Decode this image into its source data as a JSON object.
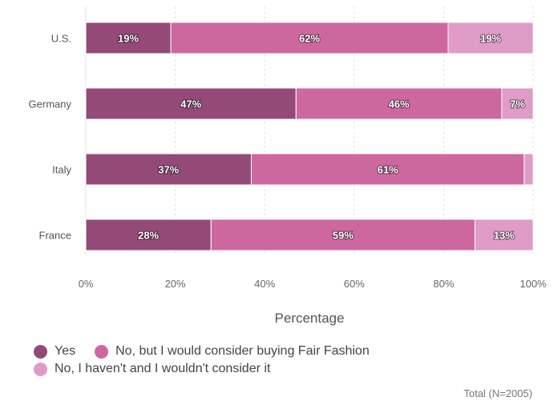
{
  "chart_data": {
    "type": "bar",
    "orientation": "horizontal",
    "stacked": true,
    "categories": [
      "U.S.",
      "Germany",
      "Italy",
      "France"
    ],
    "series": [
      {
        "name": "Yes",
        "color": "#944a77",
        "values": [
          19,
          47,
          37,
          28
        ],
        "labels": [
          "19%",
          "47%",
          "37%",
          "28%"
        ]
      },
      {
        "name": "No, but I would consider buying Fair Fashion",
        "color": "#cd689f",
        "values": [
          62,
          46,
          61,
          59
        ],
        "labels": [
          "62%",
          "46%",
          "61%",
          "59%"
        ]
      },
      {
        "name": "No, I haven't and I wouldn't consider it",
        "color": "#de9cc6",
        "values": [
          19,
          7,
          2,
          13
        ],
        "labels": [
          "19%",
          "7%",
          "",
          "13%"
        ]
      }
    ],
    "xlabel": "Percentage",
    "xlim": [
      0,
      100
    ],
    "xticks": [
      "0%",
      "20%",
      "40%",
      "60%",
      "80%",
      "100%"
    ],
    "grid": true,
    "legend": "bottom-left"
  },
  "legend_rows": [
    [
      0,
      1
    ],
    [
      2
    ]
  ],
  "footnote": "Total (N=2005)"
}
